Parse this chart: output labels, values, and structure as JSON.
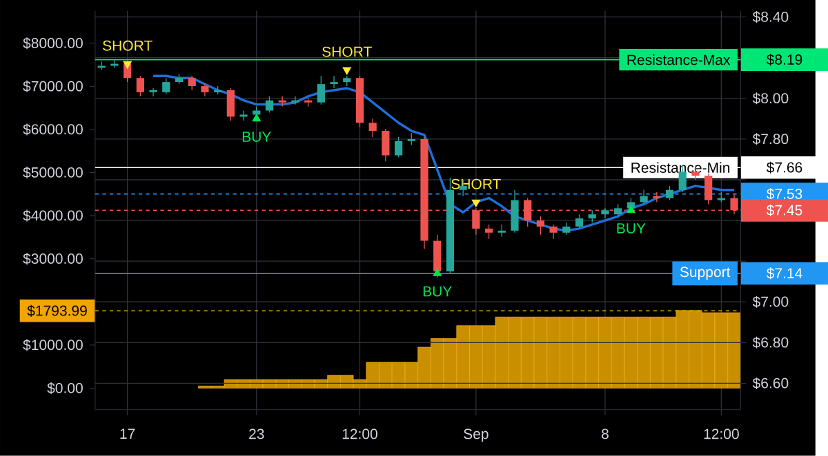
{
  "chart_data": {
    "type": "candlestick",
    "categories": [
      null,
      null,
      "17",
      null,
      null,
      null,
      null,
      null,
      null,
      null,
      null,
      null,
      "23",
      null,
      null,
      null,
      null,
      null,
      null,
      null,
      "12:00",
      null,
      null,
      null,
      null,
      null,
      null,
      null,
      null,
      "Sep",
      null,
      null,
      null,
      null,
      null,
      null,
      null,
      null,
      null,
      "8",
      null,
      null,
      null,
      null,
      null,
      null,
      null,
      null,
      "12:00",
      null
    ],
    "ylim": [
      -500,
      8750
    ],
    "yticks": [
      {
        "value": 0,
        "label": "$0.00"
      },
      {
        "value": 1000,
        "label": "$1000.00"
      },
      {
        "value": 2000,
        "label": null
      },
      {
        "value": 3000,
        "label": "$3000.00"
      },
      {
        "value": 4000,
        "label": "$4000.00"
      },
      {
        "value": 5000,
        "label": "$5000.00"
      },
      {
        "value": 6000,
        "label": "$6000.00"
      },
      {
        "value": 7000,
        "label": "$7000.00"
      },
      {
        "value": 8000,
        "label": "$8000.00"
      }
    ],
    "y2lim": [
      6.47,
      8.43
    ],
    "y2ticks": [
      {
        "value": 6.6,
        "label": "$6.60"
      },
      {
        "value": 6.8,
        "label": "$6.80"
      },
      {
        "value": 7.0,
        "label": "$7.00"
      },
      {
        "value": 7.2,
        "label": null
      },
      {
        "value": 7.4,
        "label": null
      },
      {
        "value": 7.6,
        "label": null
      },
      {
        "value": 7.8,
        "label": "$7.80"
      },
      {
        "value": 8.0,
        "label": "$8.00"
      },
      {
        "value": 8.2,
        "label": null
      },
      {
        "value": 8.4,
        "label": "$8.40"
      }
    ],
    "grid": true,
    "series": [
      {
        "axis": "y2",
        "ohlc": [
          [
            8.15,
            8.18,
            8.14,
            8.16
          ],
          [
            8.16,
            8.19,
            8.15,
            8.17
          ],
          [
            8.17,
            8.18,
            8.08,
            8.1
          ],
          [
            8.1,
            8.11,
            8.01,
            8.03
          ],
          [
            8.03,
            8.05,
            8.01,
            8.04
          ],
          [
            8.03,
            8.1,
            8.02,
            8.08
          ],
          [
            8.08,
            8.12,
            8.07,
            8.1
          ],
          [
            8.1,
            8.11,
            8.04,
            8.06
          ],
          [
            8.06,
            8.07,
            8.01,
            8.03
          ],
          [
            8.03,
            8.06,
            8.02,
            8.04
          ],
          [
            8.04,
            8.05,
            7.89,
            7.91
          ],
          [
            7.91,
            7.94,
            7.89,
            7.92
          ],
          [
            7.92,
            7.96,
            7.9,
            7.94
          ],
          [
            7.94,
            8.01,
            7.93,
            7.99
          ],
          [
            7.99,
            8.01,
            7.96,
            7.98
          ],
          [
            7.98,
            8.01,
            7.97,
            7.99
          ],
          [
            7.99,
            8.0,
            7.96,
            7.98
          ],
          [
            7.98,
            8.11,
            7.97,
            8.07
          ],
          [
            8.07,
            8.11,
            8.05,
            8.08
          ],
          [
            8.08,
            8.11,
            8.06,
            8.1
          ],
          [
            8.1,
            8.11,
            7.86,
            7.88
          ],
          [
            7.88,
            7.9,
            7.81,
            7.84
          ],
          [
            7.84,
            7.85,
            7.69,
            7.72
          ],
          [
            7.72,
            7.81,
            7.71,
            7.79
          ],
          [
            7.79,
            7.83,
            7.77,
            7.8
          ],
          [
            7.8,
            7.81,
            7.26,
            7.3
          ],
          [
            7.3,
            7.33,
            7.12,
            7.15
          ],
          [
            7.15,
            7.61,
            7.14,
            7.55
          ],
          [
            7.55,
            7.6,
            7.52,
            7.57
          ],
          [
            7.45,
            7.46,
            7.33,
            7.36
          ],
          [
            7.36,
            7.38,
            7.31,
            7.34
          ],
          [
            7.34,
            7.38,
            7.32,
            7.35
          ],
          [
            7.35,
            7.55,
            7.34,
            7.5
          ],
          [
            7.5,
            7.51,
            7.37,
            7.4
          ],
          [
            7.4,
            7.42,
            7.33,
            7.37
          ],
          [
            7.37,
            7.38,
            7.31,
            7.34
          ],
          [
            7.34,
            7.39,
            7.33,
            7.37
          ],
          [
            7.37,
            7.43,
            7.36,
            7.41
          ],
          [
            7.41,
            7.45,
            7.39,
            7.43
          ],
          [
            7.43,
            7.46,
            7.41,
            7.45
          ],
          [
            7.43,
            7.48,
            7.42,
            7.46
          ],
          [
            7.46,
            7.51,
            7.45,
            7.49
          ],
          [
            7.49,
            7.55,
            7.48,
            7.52
          ],
          [
            7.52,
            7.54,
            7.49,
            7.51
          ],
          [
            7.51,
            7.57,
            7.5,
            7.55
          ],
          [
            7.55,
            7.67,
            7.54,
            7.64
          ],
          [
            7.64,
            7.67,
            7.6,
            7.62
          ],
          [
            7.62,
            7.63,
            7.48,
            7.5
          ],
          [
            7.5,
            7.54,
            7.49,
            7.51
          ],
          [
            7.51,
            7.53,
            7.43,
            7.45
          ]
        ],
        "colors": [
          "#26a69a",
          "#26a69a",
          "#ef5350",
          "#ef5350",
          "#26a69a",
          "#26a69a",
          "#26a69a",
          "#ef5350",
          "#ef5350",
          "#26a69a",
          "#ef5350",
          "#26a69a",
          "#26a69a",
          "#26a69a",
          "#ef5350",
          "#26a69a",
          "#ef5350",
          "#26a69a",
          "#26a69a",
          "#26a69a",
          "#ef5350",
          "#ef5350",
          "#ef5350",
          "#26a69a",
          "#26a69a",
          "#ef5350",
          "#ef5350",
          "#26a69a",
          "#26a69a",
          "#ef5350",
          "#ef5350",
          "#26a69a",
          "#26a69a",
          "#ef5350",
          "#ef5350",
          "#ef5350",
          "#26a69a",
          "#26a69a",
          "#26a69a",
          "#26a69a",
          "#26a69a",
          "#26a69a",
          "#26a69a",
          "#ef5350",
          "#26a69a",
          "#26a69a",
          "#ef5350",
          "#ef5350",
          "#26a69a",
          "#ef5350"
        ]
      },
      {
        "type": "line",
        "axis": "y2",
        "color": "#1e6fd9",
        "values": [
          null,
          null,
          null,
          null,
          8.11,
          8.11,
          8.1,
          8.1,
          8.07,
          8.04,
          8.02,
          7.99,
          7.97,
          7.97,
          7.97,
          7.98,
          8.01,
          8.03,
          8.04,
          8.05,
          8.03,
          7.98,
          7.93,
          7.88,
          7.84,
          7.82,
          7.65,
          7.48,
          7.44,
          7.49,
          7.51,
          7.47,
          7.42,
          7.4,
          7.38,
          7.36,
          7.35,
          7.36,
          7.38,
          7.4,
          7.42,
          7.46,
          7.48,
          7.51,
          7.53,
          7.55,
          7.57,
          7.56,
          7.55,
          7.55
        ]
      },
      {
        "type": "bar",
        "axis": "y",
        "color": "#c98f00",
        "values": [
          0,
          0,
          0,
          0,
          0,
          0,
          0,
          0,
          50,
          50,
          200,
          200,
          200,
          200,
          200,
          200,
          200,
          200,
          300,
          300,
          200,
          600,
          600,
          600,
          600,
          950,
          1150,
          1150,
          1450,
          1450,
          1450,
          1650,
          1650,
          1650,
          1650,
          1650,
          1650,
          1650,
          1650,
          1650,
          1650,
          1650,
          1650,
          1650,
          1650,
          1800,
          1800,
          1750,
          1750,
          1750
        ]
      },
      {
        "type": "scatter",
        "axis": "y2",
        "name": "SHORT",
        "color": "#ffeb3b",
        "marker": "triangle",
        "values": [
          null,
          null,
          8.17,
          null,
          null,
          null,
          null,
          null,
          null,
          null,
          null,
          null,
          null,
          null,
          null,
          null,
          null,
          null,
          null,
          8.14,
          null,
          null,
          null,
          null,
          null,
          null,
          null,
          null,
          null,
          7.49,
          null,
          null,
          null,
          null,
          null,
          null,
          null,
          null,
          null,
          null,
          null,
          null,
          null,
          null,
          null,
          null,
          null,
          null,
          null,
          null
        ]
      },
      {
        "type": "scatter",
        "axis": "y2",
        "name": "BUY",
        "color": "#00e64d",
        "marker": "triangle",
        "values": [
          null,
          null,
          null,
          null,
          null,
          null,
          null,
          null,
          null,
          null,
          null,
          null,
          7.9,
          null,
          null,
          null,
          null,
          null,
          null,
          null,
          null,
          null,
          null,
          null,
          null,
          null,
          7.14,
          null,
          null,
          null,
          null,
          null,
          null,
          null,
          null,
          null,
          null,
          null,
          null,
          null,
          null,
          7.45,
          null,
          null,
          null,
          null,
          null,
          null,
          null,
          null
        ]
      }
    ],
    "ref_lines": [
      {
        "axis": "y2",
        "value": 8.19,
        "label": "Resistance-Max",
        "color": "#00e676",
        "line_style": "solid"
      },
      {
        "axis": "y2",
        "value": 7.66,
        "label": "Resistance-Min",
        "color": "#ffffff",
        "line_style": "solid"
      },
      {
        "axis": "y2",
        "value": 7.53,
        "color": "#2196f3",
        "line_style": "dashed"
      },
      {
        "axis": "y2",
        "value": 7.45,
        "color": "#ef5350",
        "line_style": "dashed"
      },
      {
        "axis": "y2",
        "value": 7.14,
        "label": "Support",
        "color": "#2196f3",
        "line_style": "solid"
      },
      {
        "axis": "y",
        "value": 1793.99,
        "color": "#f0a500",
        "line_style": "dashed"
      }
    ],
    "annotations": [
      "$8.19",
      "$7.66",
      "$7.53",
      "$7.45",
      "$7.14",
      "$1793.99"
    ]
  }
}
